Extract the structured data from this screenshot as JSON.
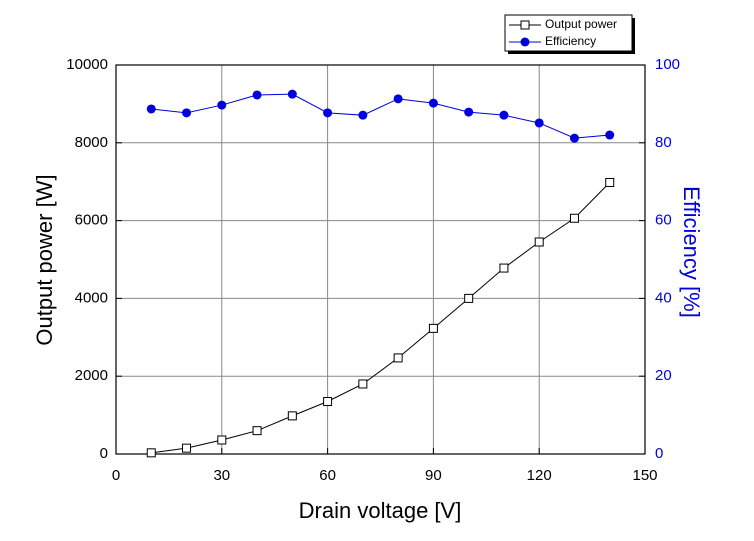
{
  "chart_data": {
    "type": "line",
    "xlabel": "Drain voltage [V]",
    "ylabel": "Output power [W]",
    "y2label": "Efficiency [%]",
    "x": [
      10,
      20,
      30,
      40,
      50,
      60,
      70,
      80,
      90,
      100,
      110,
      120,
      130,
      140
    ],
    "series": [
      {
        "name": "Output power",
        "color": "#000000",
        "marker": "open-square",
        "values": [
          30,
          150,
          360,
          600,
          980,
          1350,
          1800,
          2470,
          3230,
          4000,
          4780,
          5450,
          6060,
          6980
        ]
      },
      {
        "name": "Efficiency",
        "color": "#0000dd",
        "marker": "filled-circle",
        "axis": "y2",
        "values": [
          88.7,
          87.7,
          89.7,
          92.3,
          92.5,
          87.7,
          87.1,
          91.3,
          90.2,
          87.9,
          87.1,
          85.1,
          81.2,
          82.0
        ]
      }
    ],
    "xlim": [
      0,
      150
    ],
    "xticks": [
      0,
      30,
      60,
      90,
      120,
      150
    ],
    "ylim": [
      0,
      10000
    ],
    "yticks": [
      0,
      2000,
      4000,
      6000,
      8000,
      10000
    ],
    "y2lim": [
      0,
      100
    ],
    "y2ticks": [
      0,
      20,
      40,
      60,
      80,
      100
    ],
    "y2color": "#0000dd",
    "grid": true,
    "legend": "top-right"
  }
}
